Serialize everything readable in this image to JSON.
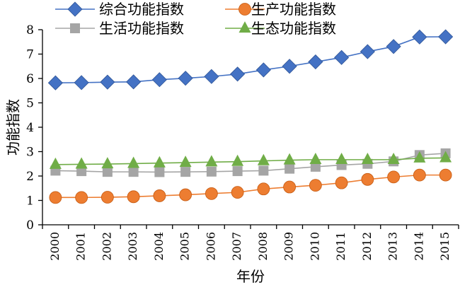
{
  "chart_data": {
    "type": "line",
    "title": "",
    "xlabel": "年份",
    "ylabel": "功能指数",
    "ylim": [
      0,
      8
    ],
    "yticks": [
      0,
      1,
      2,
      3,
      4,
      5,
      6,
      7,
      8
    ],
    "grid": false,
    "legend_position": "top",
    "x": [
      "2000",
      "2001",
      "2002",
      "2003",
      "2004",
      "2005",
      "2006",
      "2007",
      "2008",
      "2009",
      "2010",
      "2011",
      "2012",
      "2013",
      "2014",
      "2015"
    ],
    "series": [
      {
        "name": "综合功能指数",
        "marker": "diamond",
        "color": "#4472C4",
        "values": [
          5.82,
          5.83,
          5.85,
          5.86,
          5.95,
          6.01,
          6.08,
          6.18,
          6.35,
          6.5,
          6.68,
          6.86,
          7.1,
          7.31,
          7.7,
          7.71
        ]
      },
      {
        "name": "生产功能指数",
        "marker": "circle",
        "color": "#ED7D31",
        "values": [
          1.12,
          1.12,
          1.13,
          1.15,
          1.19,
          1.23,
          1.28,
          1.33,
          1.47,
          1.55,
          1.62,
          1.72,
          1.86,
          1.96,
          2.04,
          2.04
        ]
      },
      {
        "name": "生活功能指数",
        "marker": "square",
        "color": "#A5A5A5",
        "values": [
          2.22,
          2.2,
          2.17,
          2.17,
          2.16,
          2.17,
          2.18,
          2.2,
          2.22,
          2.3,
          2.38,
          2.45,
          2.5,
          2.6,
          2.86,
          2.93
        ]
      },
      {
        "name": "生态功能指数",
        "marker": "triangle",
        "color": "#70AD47",
        "values": [
          2.47,
          2.48,
          2.49,
          2.51,
          2.53,
          2.55,
          2.57,
          2.59,
          2.62,
          2.65,
          2.67,
          2.67,
          2.67,
          2.67,
          2.73,
          2.74
        ]
      }
    ]
  }
}
